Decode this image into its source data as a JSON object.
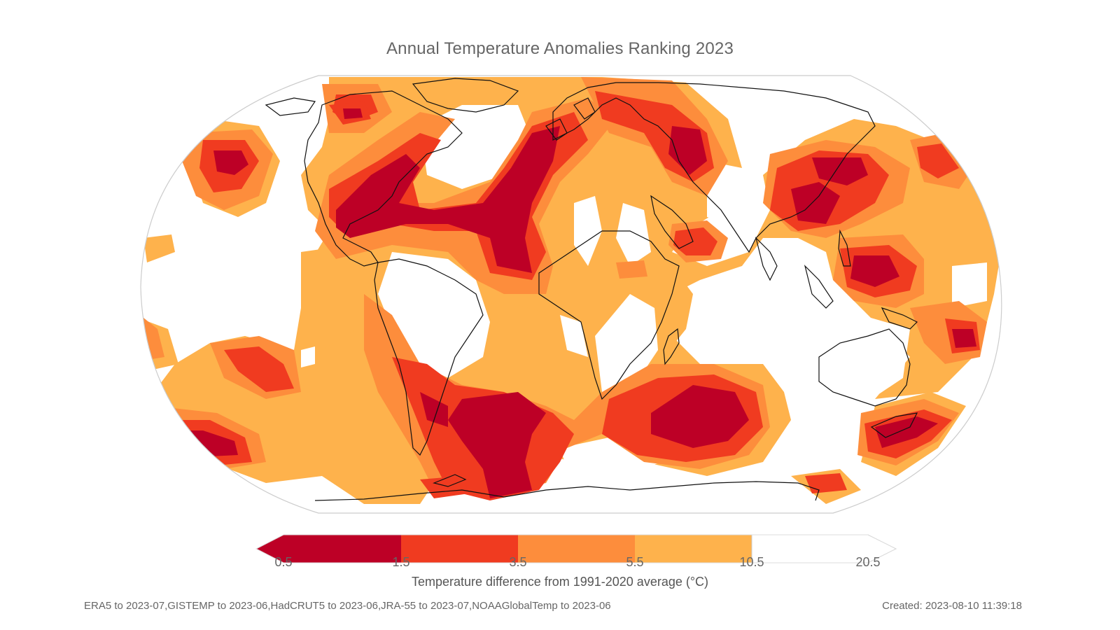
{
  "title": "Annual Temperature Anomalies Ranking 2023",
  "colorbar": {
    "ticks": [
      "0.5",
      "1.5",
      "3.5",
      "5.5",
      "10.5",
      "20.5"
    ],
    "label": "Temperature difference from 1991-2020 average (°C)",
    "colors": [
      "#bd0026",
      "#f03b20",
      "#fd8d3c",
      "#feb24c",
      "#ffffff"
    ]
  },
  "footer": {
    "sources": "ERA5 to 2023-07,GISTEMP to 2023-06,HadCRUT5 to 2023-06,JRA-55 to 2023-07,NOAAGlobalTemp to 2023-06",
    "created": "Created: 2023-08-10 11:39:18"
  }
}
